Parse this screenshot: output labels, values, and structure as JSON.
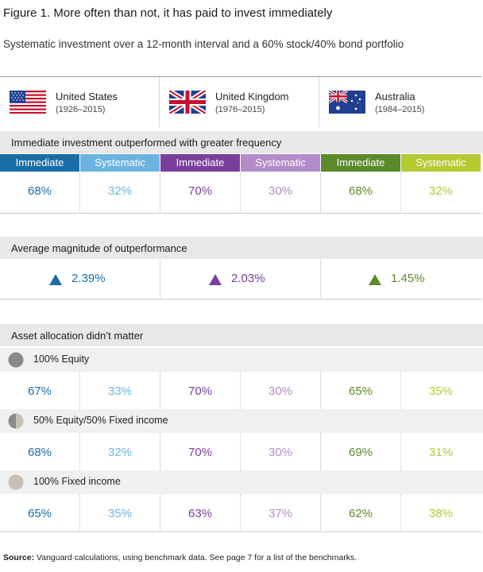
{
  "title": "Figure 1. More often than not, it has paid to invest immediately",
  "subtitle": "Systematic investment over a 12-month interval and a 60% stock/40% bond portfolio",
  "colors": {
    "us_immediate": "#1a6ea8",
    "us_systematic": "#6cb3e0",
    "uk_immediate": "#7a3f9d",
    "uk_systematic": "#b28cc9",
    "au_immediate": "#5a8a2a",
    "au_systematic": "#b5c933"
  },
  "countries": [
    {
      "name": "United States",
      "years": "(1926–2015)",
      "flag": "us-flag-icon"
    },
    {
      "name": "United Kingdom",
      "years": "(1976–2015)",
      "flag": "uk-flag-icon"
    },
    {
      "name": "Australia",
      "years": "(1984–2015)",
      "flag": "australia-flag-icon"
    }
  ],
  "sections": {
    "frequency": "Immediate investment outperformed with greater frequency",
    "magnitude": "Average magnitude of outperformance",
    "allocation": "Asset allocation didn’t matter"
  },
  "labels": {
    "immediate": "Immediate",
    "systematic": "Systematic"
  },
  "allocations": [
    "100% Equity",
    "50% Equity/50% Fixed income",
    "100% Fixed income"
  ],
  "chart_data": {
    "type": "table",
    "title": "Figure 1. More often than not, it has paid to invest immediately",
    "columns": [
      "US Immediate",
      "US Systematic",
      "UK Immediate",
      "UK Systematic",
      "AU Immediate",
      "AU Systematic"
    ],
    "frequency": [
      "68%",
      "32%",
      "70%",
      "30%",
      "68%",
      "32%"
    ],
    "magnitude": [
      "2.39%",
      "2.03%",
      "1.45%"
    ],
    "allocation_rows": [
      [
        "67%",
        "33%",
        "70%",
        "30%",
        "65%",
        "35%"
      ],
      [
        "68%",
        "32%",
        "70%",
        "30%",
        "69%",
        "31%"
      ],
      [
        "65%",
        "35%",
        "63%",
        "37%",
        "62%",
        "38%"
      ]
    ]
  },
  "source": {
    "label": "Source:",
    "text": " Vanguard calculations, using benchmark data. See page 7 for a list of the benchmarks."
  }
}
